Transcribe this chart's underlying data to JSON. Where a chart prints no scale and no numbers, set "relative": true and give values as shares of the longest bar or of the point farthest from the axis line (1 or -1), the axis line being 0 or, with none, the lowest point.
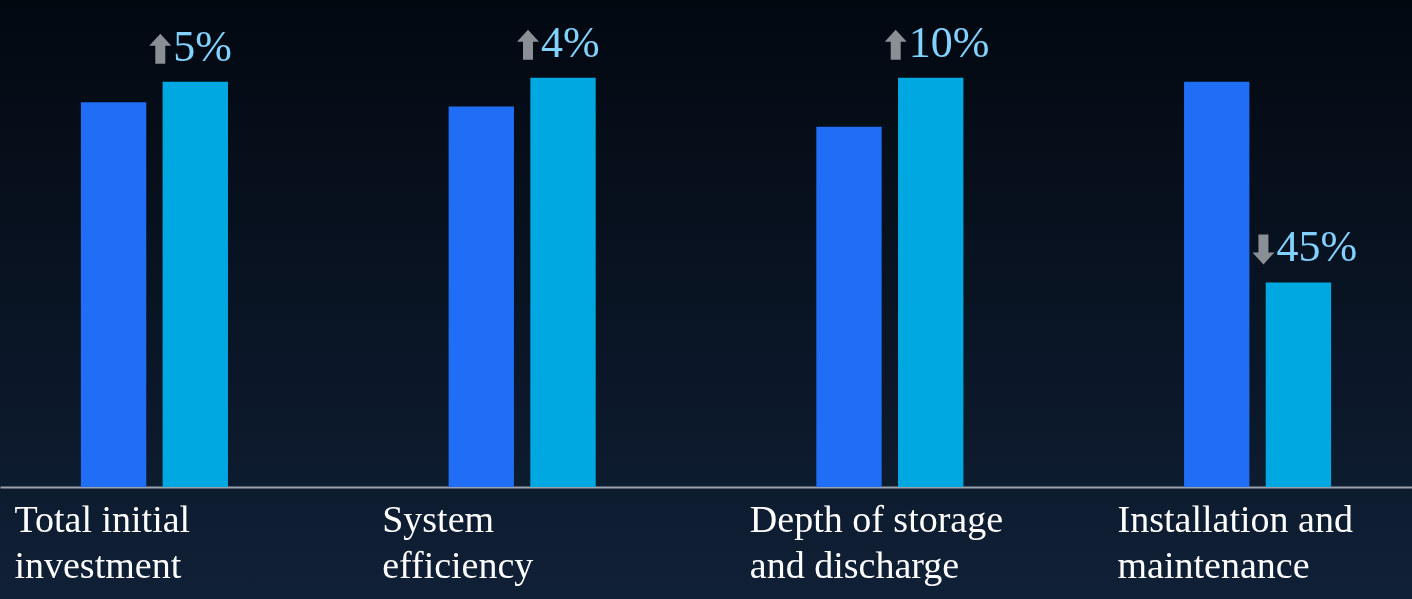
{
  "chart_data": {
    "type": "bar",
    "relative": true,
    "categories": [
      "Total initial investment",
      "System efficiency",
      "Depth of storage and discharge",
      "Installation and maintenance"
    ],
    "series": [
      {
        "color": "#1f6ef5",
        "values": [
          0.94,
          0.93,
          0.88,
          0.99
        ]
      },
      {
        "color": "#00a8e2",
        "values": [
          0.99,
          1,
          1,
          0.5
        ]
      }
    ],
    "annotations": [
      "5%",
      "4%",
      "10%",
      "45%"
    ]
  }
}
